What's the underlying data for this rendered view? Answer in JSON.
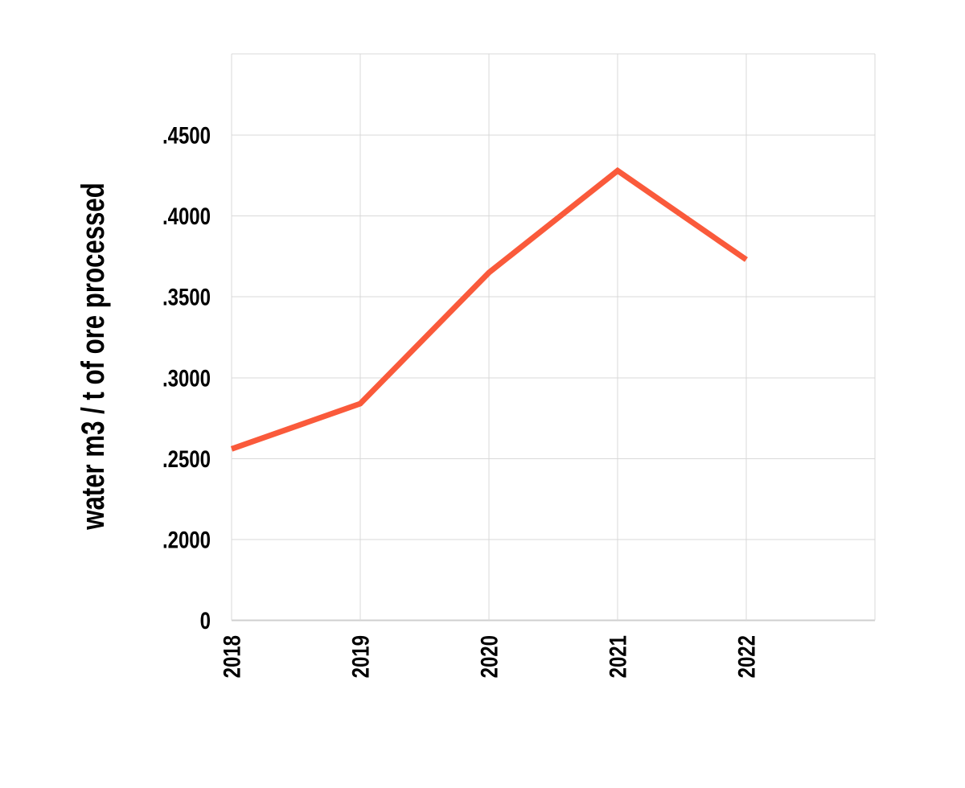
{
  "chart_data": {
    "type": "line",
    "title": "",
    "xlabel": "",
    "ylabel": "water m3 / t of ore processed",
    "categories": [
      "2018",
      "2019",
      "2020",
      "2021",
      "2022"
    ],
    "values": [
      0.256,
      0.284,
      0.365,
      0.428,
      0.373
    ],
    "y_ticks": [
      {
        "label": ".4500",
        "value": 0.45
      },
      {
        "label": ".4000",
        "value": 0.4
      },
      {
        "label": ".3500",
        "value": 0.35
      },
      {
        "label": ".3000",
        "value": 0.3
      },
      {
        "label": ".2500",
        "value": 0.25
      },
      {
        "label": ".2000",
        "value": 0.2
      },
      {
        "label": "0",
        "value": 0.0
      }
    ],
    "y_axis_top_unlabeled_value": 0.5,
    "axis_style": "y ticks evenly spaced with a break between .2000 and 0",
    "grid": true,
    "legend": false,
    "colors": {
      "line": "#FA5A3B",
      "grid": "#D9D9D9",
      "axis": "#CFCFCF",
      "text": "#000000",
      "background": "#FFFFFF"
    }
  }
}
